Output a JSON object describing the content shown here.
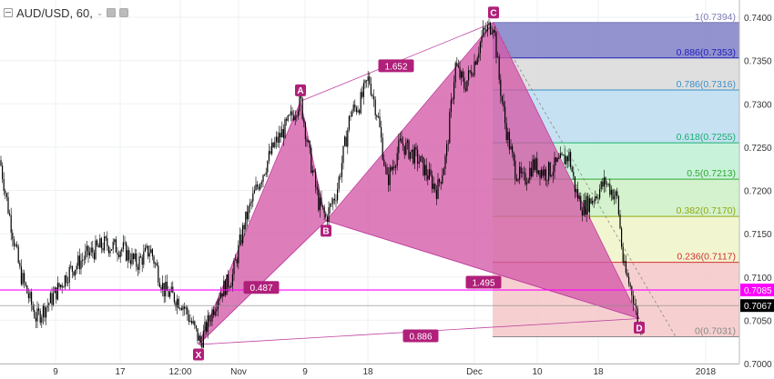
{
  "header": {
    "title": "AUD/USD, 60,",
    "caret": "⌄",
    "icons": [
      "minus-square-icon",
      "eye-icon",
      "gear-icon"
    ]
  },
  "chart_data": {
    "type": "candlestick",
    "symbol": "AUD/USD",
    "interval": "60",
    "ylim": [
      0.7,
      0.742
    ],
    "y_ticks": [
      "0.7400",
      "0.7350",
      "0.7300",
      "0.7250",
      "0.7200",
      "0.7150",
      "0.7100",
      "0.7050",
      "0.7000"
    ],
    "x_ticks": [
      "9",
      "17",
      "12:00",
      "Nov",
      "9",
      "18",
      "Dec",
      "10",
      "18",
      "2018"
    ],
    "price_path": [
      [
        0,
        0.7235
      ],
      [
        8,
        0.7185
      ],
      [
        22,
        0.7105
      ],
      [
        40,
        0.7052
      ],
      [
        55,
        0.7072
      ],
      [
        75,
        0.7105
      ],
      [
        95,
        0.7125
      ],
      [
        115,
        0.7138
      ],
      [
        135,
        0.7132
      ],
      [
        150,
        0.7115
      ],
      [
        165,
        0.7132
      ],
      [
        180,
        0.7085
      ],
      [
        200,
        0.707
      ],
      [
        210,
        0.7048
      ],
      [
        220,
        0.7024
      ],
      [
        240,
        0.708
      ],
      [
        255,
        0.71
      ],
      [
        268,
        0.716
      ],
      [
        280,
        0.7198
      ],
      [
        300,
        0.725
      ],
      [
        315,
        0.7275
      ],
      [
        330,
        0.7305
      ],
      [
        340,
        0.724
      ],
      [
        350,
        0.7185
      ],
      [
        358,
        0.7168
      ],
      [
        370,
        0.72
      ],
      [
        385,
        0.729
      ],
      [
        395,
        0.73
      ],
      [
        405,
        0.733
      ],
      [
        415,
        0.7285
      ],
      [
        425,
        0.721
      ],
      [
        440,
        0.7255
      ],
      [
        460,
        0.7235
      ],
      [
        480,
        0.72
      ],
      [
        490,
        0.724
      ],
      [
        500,
        0.7345
      ],
      [
        510,
        0.732
      ],
      [
        520,
        0.7345
      ],
      [
        530,
        0.738
      ],
      [
        542,
        0.7394
      ],
      [
        548,
        0.733
      ],
      [
        555,
        0.7275
      ],
      [
        565,
        0.7225
      ],
      [
        575,
        0.721
      ],
      [
        585,
        0.723
      ],
      [
        600,
        0.722
      ],
      [
        612,
        0.723
      ],
      [
        625,
        0.724
      ],
      [
        632,
        0.72
      ],
      [
        640,
        0.718
      ],
      [
        650,
        0.719
      ],
      [
        665,
        0.721
      ],
      [
        678,
        0.719
      ],
      [
        685,
        0.711
      ],
      [
        695,
        0.708
      ],
      [
        702,
        0.704
      ],
      [
        706,
        0.7055
      ]
    ],
    "pattern": {
      "name": "bat",
      "points": [
        {
          "label": "X",
          "t": 218,
          "value": 0.7022
        },
        {
          "label": "A",
          "t": 330,
          "value": 0.7303
        },
        {
          "label": "B",
          "t": 358,
          "value": 0.7165
        },
        {
          "label": "C",
          "t": 542,
          "value": 0.7394
        },
        {
          "label": "D",
          "t": 702,
          "value": 0.7052
        }
      ],
      "ratios": [
        {
          "label": "0.487",
          "t": 287,
          "value": 0.7088
        },
        {
          "label": "1.652",
          "t": 435,
          "value": 0.7344
        },
        {
          "label": "1.495",
          "t": 531,
          "value": 0.7094
        },
        {
          "label": "0.886",
          "t": 462,
          "value": 0.7032
        }
      ]
    },
    "fibonacci": {
      "t_start": 541,
      "t_end": 812,
      "levels": [
        {
          "ratio": "1",
          "value": 0.7394,
          "label": "1(0.7394)",
          "color": "#7b7bb8",
          "fill": "#8080c8"
        },
        {
          "ratio": "0.886",
          "value": 0.7353,
          "label": "0.886(0.7353)",
          "color": "#1e1eb8",
          "fill": "#d9d9d9"
        },
        {
          "ratio": "0.786",
          "value": 0.7316,
          "label": "0.786(0.7316)",
          "color": "#3a8fc7",
          "fill": "#bcdcf0"
        },
        {
          "ratio": "0.618",
          "value": 0.7255,
          "label": "0.618(0.7255)",
          "color": "#18b070",
          "fill": "#bff0d5"
        },
        {
          "ratio": "0.5",
          "value": 0.7213,
          "label": "0.5(0.7213)",
          "color": "#30a830",
          "fill": "#cdf0c4"
        },
        {
          "ratio": "0.382",
          "value": 0.717,
          "label": "0.382(0.7170)",
          "color": "#8fa810",
          "fill": "#f0f5c8"
        },
        {
          "ratio": "0.236",
          "value": 0.7117,
          "label": "0.236(0.7117)",
          "color": "#d03030",
          "fill": "#f5c8c8"
        },
        {
          "ratio": "0",
          "value": 0.7031,
          "label": "0(0.7031)",
          "color": "#888888",
          "fill": "#f2d0d0"
        }
      ]
    },
    "price_markers": [
      {
        "label": "0.7085",
        "value": 0.7085,
        "bg": "#ff00ff",
        "color": "#ffffff",
        "line": "#ff00ff"
      },
      {
        "label": "0.7067",
        "value": 0.7067,
        "bg": "#000000",
        "color": "#ffffff",
        "line": "#888888"
      }
    ],
    "colors": {
      "pattern_fill": "#d45aa8",
      "pattern_line": "#c040a0",
      "point_bg": "#b0207a",
      "candle": "#000000"
    }
  }
}
